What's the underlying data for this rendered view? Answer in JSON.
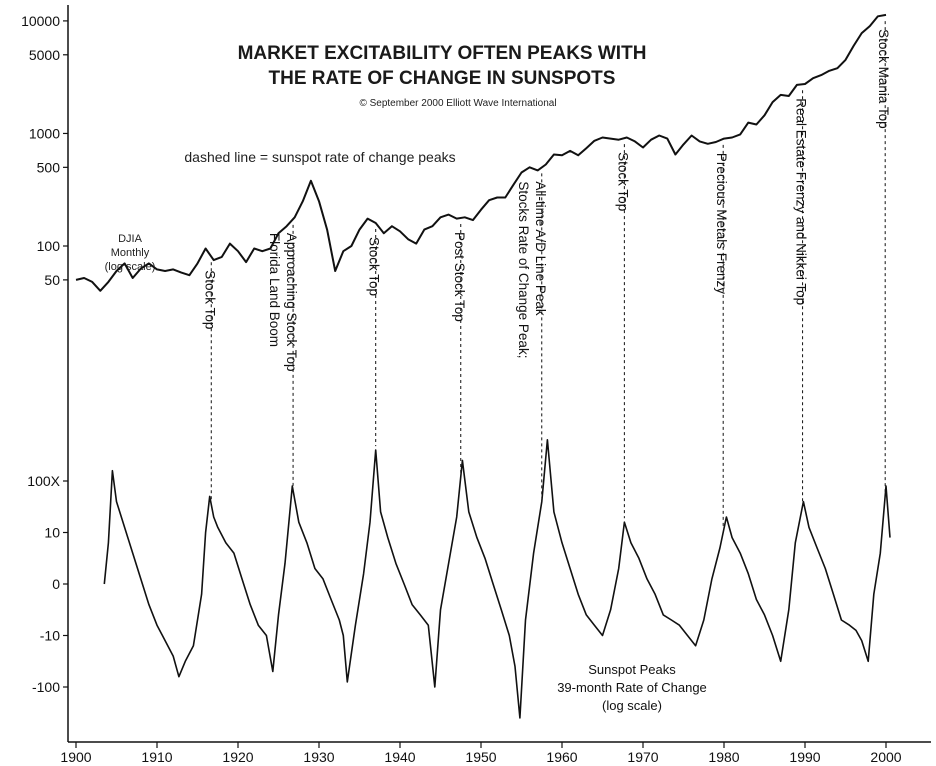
{
  "title": {
    "line1": "MARKET EXCITABILITY OFTEN PEAKS WITH",
    "line2": "THE RATE OF CHANGE IN SUNSPOTS",
    "copyright": "© September 2000 Elliott Wave International"
  },
  "note": "dashed line = sunspot rate of change peaks",
  "djia_label": [
    "DJIA",
    "Monthly",
    "(log scale)"
  ],
  "sunspot_label": [
    "Sunspot Peaks",
    "39-month Rate of Change",
    "(log scale)"
  ],
  "chart_data": [
    {
      "type": "line",
      "name": "DJIA Monthly",
      "scale": "log",
      "y_ticks": [
        50,
        100,
        500,
        1000,
        5000,
        10000
      ],
      "y_tick_labels": [
        "50",
        "100",
        "500",
        "1000",
        "5000",
        "10000"
      ],
      "ylim": [
        27,
        12000
      ],
      "x": [
        1900,
        1901,
        1902,
        1903,
        1904,
        1905,
        1906,
        1907,
        1908,
        1909,
        1910,
        1911,
        1912,
        1913,
        1914,
        1915,
        1916,
        1917,
        1918,
        1919,
        1920,
        1921,
        1922,
        1923,
        1924,
        1925,
        1926,
        1927,
        1928,
        1929,
        1930,
        1931,
        1932,
        1933,
        1934,
        1935,
        1936,
        1937,
        1938,
        1939,
        1940,
        1941,
        1942,
        1943,
        1944,
        1945,
        1946,
        1947,
        1948,
        1949,
        1950,
        1951,
        1952,
        1953,
        1954,
        1955,
        1956,
        1957,
        1958,
        1959,
        1960,
        1961,
        1962,
        1963,
        1964,
        1965,
        1966,
        1967,
        1968,
        1969,
        1970,
        1971,
        1972,
        1973,
        1974,
        1975,
        1976,
        1977,
        1978,
        1979,
        1980,
        1981,
        1982,
        1983,
        1984,
        1985,
        1986,
        1987,
        1988,
        1989,
        1990,
        1991,
        1992,
        1993,
        1994,
        1995,
        1996,
        1997,
        1998,
        1999,
        2000
      ],
      "values": [
        50,
        52,
        48,
        40,
        48,
        60,
        70,
        52,
        63,
        70,
        62,
        60,
        62,
        58,
        55,
        70,
        95,
        75,
        80,
        105,
        90,
        72,
        95,
        90,
        95,
        130,
        150,
        180,
        250,
        380,
        250,
        140,
        60,
        90,
        100,
        140,
        175,
        160,
        130,
        150,
        135,
        115,
        105,
        140,
        150,
        180,
        190,
        175,
        180,
        170,
        210,
        255,
        270,
        270,
        350,
        450,
        500,
        470,
        530,
        650,
        640,
        700,
        640,
        740,
        860,
        920,
        900,
        880,
        920,
        850,
        750,
        880,
        960,
        900,
        650,
        800,
        960,
        850,
        810,
        840,
        900,
        920,
        980,
        1250,
        1200,
        1450,
        1900,
        2200,
        2150,
        2700,
        2750,
        3100,
        3300,
        3600,
        3800,
        4500,
        6000,
        7800,
        9000,
        11000,
        11300
      ]
    },
    {
      "type": "line",
      "name": "Sunspot 39-month Rate of Change",
      "scale": "log",
      "y_ticks": [
        "100X",
        "10",
        "0",
        "-10",
        "-100"
      ],
      "x": [
        1903.5,
        1904,
        1904.5,
        1905,
        1906,
        1907,
        1908,
        1909,
        1910,
        1911,
        1912,
        1912.7,
        1913.5,
        1914.5,
        1915.5,
        1916,
        1916.5,
        1917,
        1917.5,
        1918.5,
        1919.5,
        1920.5,
        1921.5,
        1922.5,
        1923.5,
        1924.3,
        1925,
        1925.8,
        1926.7,
        1927.5,
        1928.5,
        1929.5,
        1930.5,
        1931.5,
        1932.5,
        1933,
        1933.5,
        1934.5,
        1935.5,
        1936.3,
        1937,
        1937.6,
        1938.5,
        1939.5,
        1940.5,
        1941.5,
        1942.5,
        1943.5,
        1944.3,
        1945,
        1946,
        1947,
        1947.7,
        1948.5,
        1949.5,
        1950.5,
        1951.5,
        1952.5,
        1953.5,
        1954.2,
        1954.8,
        1955.5,
        1956.5,
        1957.5,
        1958.2,
        1959,
        1960,
        1961,
        1962,
        1963,
        1964,
        1965,
        1966,
        1967,
        1967.7,
        1968.5,
        1969.5,
        1970.5,
        1971.5,
        1972.5,
        1973.5,
        1974.5,
        1975.5,
        1976.5,
        1977.5,
        1978.5,
        1979.5,
        1980.3,
        1981,
        1982,
        1983,
        1984,
        1985,
        1986,
        1987,
        1988,
        1988.8,
        1989.8,
        1990.5,
        1991.5,
        1992.5,
        1993.5,
        1994.5,
        1995.5,
        1996.3,
        1997,
        1997.8,
        1998.5,
        1999.3,
        2000,
        2000.5
      ],
      "values": [
        0,
        0.8,
        2.2,
        1.6,
        1.1,
        0.6,
        0.1,
        -0.4,
        -0.8,
        -1.1,
        -1.4,
        -1.8,
        -1.5,
        -1.2,
        -0.2,
        1.0,
        1.7,
        1.3,
        1.1,
        0.8,
        0.6,
        0.1,
        -0.4,
        -0.8,
        -1.0,
        -1.7,
        -0.6,
        0.4,
        1.9,
        1.2,
        0.8,
        0.3,
        0.1,
        -0.3,
        -0.7,
        -1.0,
        -1.9,
        -0.8,
        0.2,
        1.2,
        2.6,
        1.4,
        0.9,
        0.4,
        0.0,
        -0.4,
        -0.6,
        -0.8,
        -2.0,
        -0.5,
        0.4,
        1.3,
        2.4,
        1.4,
        0.9,
        0.5,
        0.0,
        -0.5,
        -1.0,
        -1.6,
        -2.6,
        -0.7,
        0.6,
        1.6,
        2.8,
        1.4,
        0.8,
        0.3,
        -0.2,
        -0.6,
        -0.8,
        -1.0,
        -0.5,
        0.3,
        1.2,
        0.8,
        0.5,
        0.1,
        -0.2,
        -0.6,
        -0.7,
        -0.8,
        -1.0,
        -1.2,
        -0.7,
        0.1,
        0.7,
        1.3,
        0.9,
        0.6,
        0.2,
        -0.3,
        -0.6,
        -1.0,
        -1.5,
        -0.5,
        0.8,
        1.6,
        1.1,
        0.7,
        0.3,
        -0.2,
        -0.7,
        -0.8,
        -0.9,
        -1.1,
        -1.5,
        -0.2,
        0.6,
        1.9,
        0.9
      ]
    }
  ],
  "x_axis": {
    "xlim": [
      1899,
      2006
    ],
    "ticks": [
      1900,
      1910,
      1920,
      1930,
      1940,
      1950,
      1960,
      1970,
      1980,
      1990,
      2000
    ]
  },
  "sunspot_ticks": [
    {
      "label": "100X",
      "level": 2
    },
    {
      "label": "10",
      "level": 1
    },
    {
      "label": "0",
      "level": 0
    },
    {
      "label": "-10",
      "level": -1
    },
    {
      "label": "-100",
      "level": -2
    }
  ],
  "events": [
    {
      "year": 1916.7,
      "lines": [
        "Stock Top"
      ]
    },
    {
      "year": 1926.8,
      "lines": [
        "Florida Land Boom",
        "Approaching Stock Top"
      ]
    },
    {
      "year": 1937,
      "lines": [
        "Stock Top"
      ]
    },
    {
      "year": 1947.5,
      "lines": [
        "Post Stock Top"
      ]
    },
    {
      "year": 1957.5,
      "lines": [
        "Stocks Rate of Change Peak;",
        "All-time A/D Line Peak"
      ]
    },
    {
      "year": 1967.7,
      "lines": [
        "Stock Top"
      ]
    },
    {
      "year": 1979.9,
      "lines": [
        "Precious Metals Frenzy"
      ]
    },
    {
      "year": 1989.7,
      "lines": [
        "Real Estate Frenzy and Nikkei Top"
      ]
    },
    {
      "year": 1999.9,
      "lines": [
        "Stock Mania Top"
      ]
    }
  ],
  "colors": {
    "line": "#111111",
    "axis": "#111111",
    "background": "#ffffff"
  }
}
